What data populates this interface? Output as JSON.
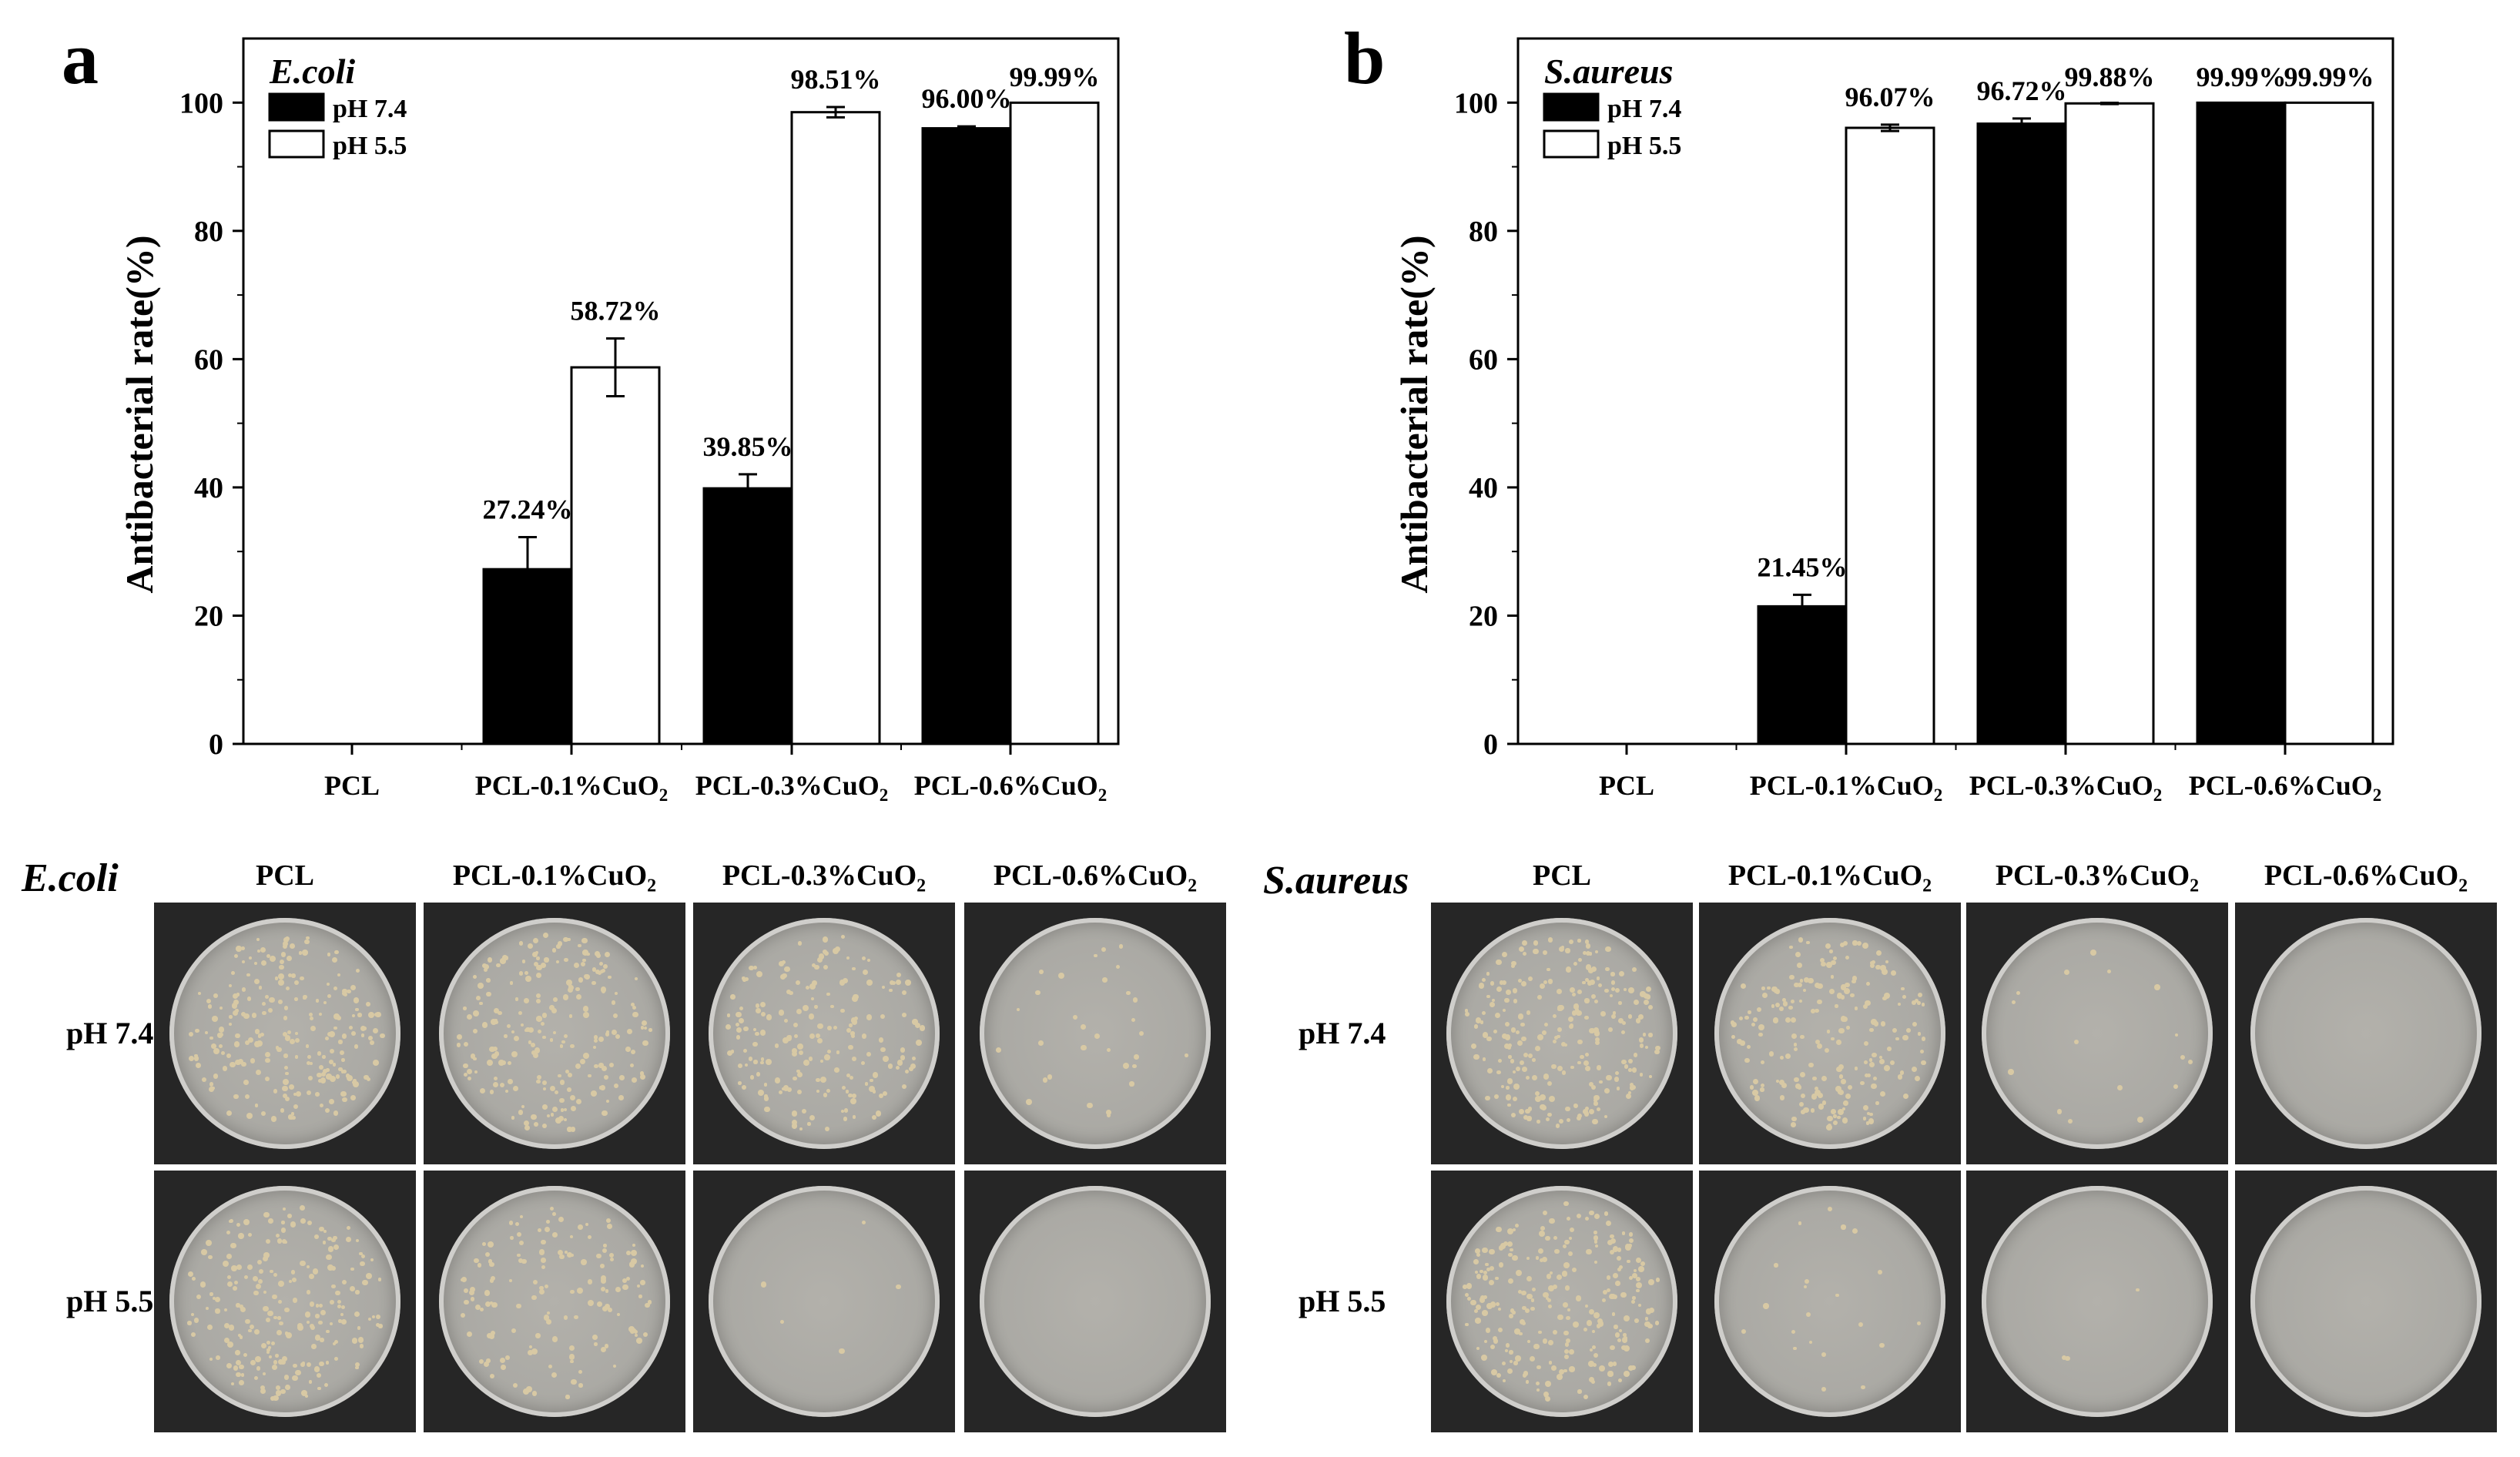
{
  "panels": [
    {
      "letter": "a",
      "organism": "E.coli",
      "legend": [
        "pH 7.4",
        "pH 5.5"
      ],
      "photo_columns": [
        "PCL",
        "PCL-0.1%CuO₂",
        "PCL-0.3%CuO₂",
        "PCL-0.6%CuO₂"
      ],
      "photo_rows": [
        "pH 7.4",
        "pH 5.5"
      ],
      "colony_density": [
        [
          0.9,
          0.85,
          0.75,
          0.12
        ],
        [
          0.85,
          0.55,
          0.02,
          0.0
        ]
      ]
    },
    {
      "letter": "b",
      "organism": "S.aureus",
      "legend": [
        "pH 7.4",
        "pH 5.5"
      ],
      "photo_columns": [
        "PCL",
        "PCL-0.1%CuO₂",
        "PCL-0.3%CuO₂",
        "PCL-0.6%CuO₂"
      ],
      "photo_rows": [
        "pH 7.4",
        "pH 5.5"
      ],
      "colony_density": [
        [
          0.95,
          0.8,
          0.06,
          0.0
        ],
        [
          0.95,
          0.08,
          0.01,
          0.0
        ]
      ]
    }
  ],
  "chart_data": [
    {
      "type": "bar",
      "title": "E.coli",
      "xlabel": "",
      "ylabel": "Antibacterial rate(%)",
      "ylim": [
        0,
        110
      ],
      "yticks": [
        0,
        20,
        40,
        60,
        80,
        100
      ],
      "categories": [
        "PCL",
        "PCL-0.1%CuO₂",
        "PCL-0.3%CuO₂",
        "PCL-0.6%CuO₂"
      ],
      "series": [
        {
          "name": "pH 7.4",
          "color": "#000000",
          "values": [
            0,
            27.24,
            39.85,
            96.0
          ],
          "errors": [
            0,
            5.0,
            2.2,
            0.3
          ],
          "labels": [
            "",
            "27.24%",
            "39.85%",
            "96.00%"
          ]
        },
        {
          "name": "pH 5.5",
          "color": "#ffffff",
          "values": [
            0,
            58.72,
            98.51,
            99.99
          ],
          "errors": [
            0,
            4.5,
            0.8,
            0
          ],
          "labels": [
            "",
            "58.72%",
            "98.51%",
            "99.99%"
          ]
        }
      ],
      "legend_position": "top-left"
    },
    {
      "type": "bar",
      "title": "S.aureus",
      "xlabel": "",
      "ylabel": "Antibacterial rate(%)",
      "ylim": [
        0,
        110
      ],
      "yticks": [
        0,
        20,
        40,
        60,
        80,
        100
      ],
      "categories": [
        "PCL",
        "PCL-0.1%CuO₂",
        "PCL-0.3%CuO₂",
        "PCL-0.6%CuO₂"
      ],
      "series": [
        {
          "name": "pH 7.4",
          "color": "#000000",
          "values": [
            0,
            21.45,
            96.72,
            99.99
          ],
          "errors": [
            0,
            1.8,
            0.8,
            0
          ],
          "labels": [
            "",
            "21.45%",
            "96.72%",
            "99.99%"
          ]
        },
        {
          "name": "pH 5.5",
          "color": "#ffffff",
          "values": [
            0,
            96.07,
            99.88,
            99.99
          ],
          "errors": [
            0,
            0.5,
            0.1,
            0
          ],
          "labels": [
            "",
            "96.07%",
            "99.88%",
            "99.99%"
          ]
        }
      ],
      "legend_position": "top-left"
    }
  ]
}
